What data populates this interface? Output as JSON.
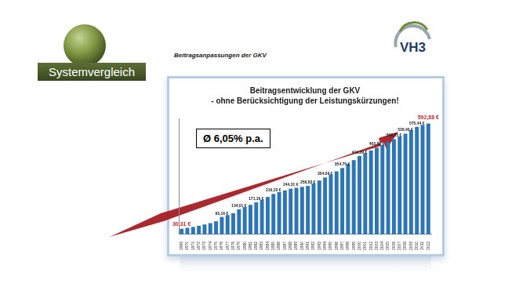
{
  "header": {
    "logo_text": "Systemvergleich",
    "brand": "VH3",
    "heading": "Beitragsanpassungen der GKV"
  },
  "chart_data": {
    "type": "bar",
    "title": "Beitragsentwicklung der GKV",
    "subtitle": "- ohne Berücksichtigung der Leistungskürzungen!",
    "annotations": [
      "Ø 6,05% p.a."
    ],
    "categories": [
      "1969",
      "1970",
      "1971",
      "1972",
      "1973",
      "1974",
      "1975",
      "1976",
      "1977",
      "1978",
      "1979",
      "1980",
      "1981",
      "1982",
      "1983",
      "1984",
      "1985",
      "1986",
      "1987",
      "1988",
      "1989",
      "1990",
      "1991",
      "1992",
      "1993",
      "1994",
      "1995",
      "1996",
      "1997",
      "1998",
      "1999",
      "2000",
      "2001",
      "2002",
      "2003",
      "2004",
      "2005",
      "2006",
      "2007",
      "2008",
      "2009",
      "2010",
      "2011",
      "2012"
    ],
    "values": [
      30.31,
      35,
      40,
      46,
      53,
      60,
      70,
      93.16,
      103,
      113,
      134.01,
      146,
      158,
      171.16,
      185,
      200,
      216.23,
      226,
      235,
      244.31,
      249,
      254,
      258.83,
      272,
      288,
      304.09,
      320,
      337,
      354.75,
      376,
      397,
      419.29,
      434,
      449,
      463.8,
      478,
      494,
      509.25,
      524,
      538.4,
      557,
      575.44,
      585,
      592.88
    ],
    "value_labels": [
      "30,31 €",
      null,
      null,
      null,
      null,
      null,
      null,
      "93,16 €",
      null,
      null,
      "134,01 €",
      null,
      null,
      "171,16 €",
      null,
      null,
      "216,23 €",
      null,
      null,
      "244,31 €",
      null,
      null,
      "258,83 €",
      null,
      null,
      "304,09 €",
      null,
      null,
      "354,75 €",
      null,
      null,
      "419,29 €",
      null,
      null,
      "463,80 €",
      null,
      null,
      "509,25 €",
      null,
      "538,40 €",
      null,
      "575,44 €",
      null,
      "592,88 €"
    ],
    "data_labels": true,
    "color": "#2e75b6",
    "ylim": [
      0,
      620
    ],
    "grid": false,
    "tick_labels": "x",
    "legend": false
  }
}
